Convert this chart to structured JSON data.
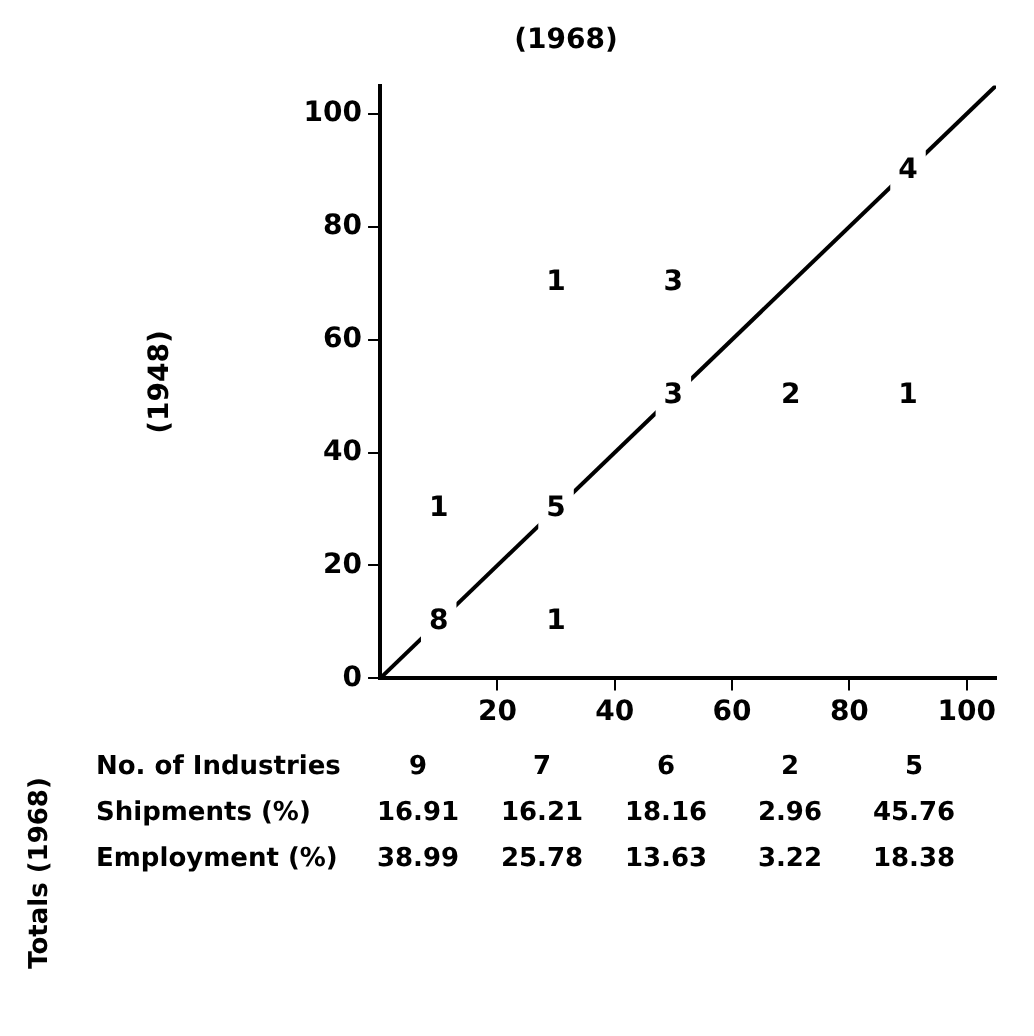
{
  "chart_data": {
    "type": "line",
    "xlabel": "(1968)",
    "ylabel": "(1948)",
    "series": [
      {
        "color": "#000000",
        "x": [
          0,
          105
        ],
        "values": [
          0,
          105
        ]
      }
    ],
    "xlim": [
      0,
      105
    ],
    "ylim": [
      0,
      105
    ],
    "xticks": [
      20,
      40,
      60,
      80,
      100
    ],
    "yticks": [
      0,
      20,
      40,
      60,
      80,
      100
    ],
    "grid": false,
    "legend": false,
    "line_style": "solid",
    "annotations": [
      "Totals (1968)",
      "No. of Industries",
      "9",
      "7",
      "6",
      "2",
      "5",
      "Shipments (%)",
      "16.91",
      "16.21",
      "18.16",
      "2.96",
      "45.76",
      "Employment (%)",
      "38.99",
      "25.78",
      "13.63",
      "3.22",
      "18.38",
      {
        "text": "8",
        "x": 10,
        "y": 10
      },
      {
        "text": "1",
        "x": 10,
        "y": 30
      },
      {
        "text": "1",
        "x": 30,
        "y": 10
      },
      {
        "text": "5",
        "x": 30,
        "y": 30
      },
      {
        "text": "1",
        "x": 30,
        "y": 70
      },
      {
        "text": "3",
        "x": 50,
        "y": 70
      },
      {
        "text": "3",
        "x": 50,
        "y": 50
      },
      {
        "text": "2",
        "x": 70,
        "y": 50
      },
      {
        "text": "1",
        "x": 90,
        "y": 50
      },
      {
        "text": "4",
        "x": 90,
        "y": 90
      }
    ]
  }
}
